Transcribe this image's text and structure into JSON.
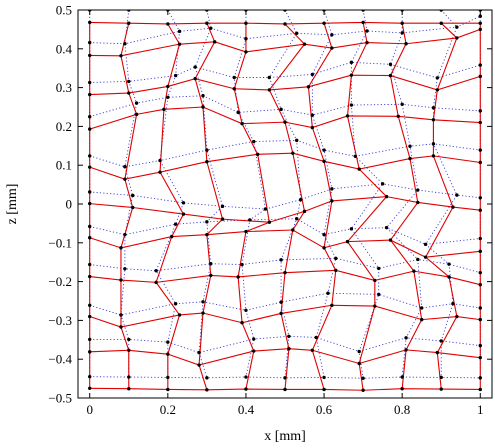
{
  "chart_data": {
    "type": "scatter",
    "title": "",
    "xlabel": "x [mm]",
    "ylabel": "z [mm]",
    "xlim": [
      -0.03,
      1.03
    ],
    "ylim": [
      -0.5,
      0.5
    ],
    "xticks": [
      0,
      0.2,
      0.4,
      0.6,
      0.8,
      1
    ],
    "xtick_labels": [
      "0",
      "0.2",
      "0.4",
      "0.6",
      "0.8",
      "1"
    ],
    "yticks": [
      -0.5,
      -0.4,
      -0.3,
      -0.2,
      -0.1,
      0,
      0.1,
      0.2,
      0.3,
      0.4,
      0.5
    ],
    "ytick_labels": [
      "−0.5",
      "−0.4",
      "−0.3",
      "−0.2",
      "−0.1",
      "0",
      "0.1",
      "0.2",
      "0.3",
      "0.4",
      "0.5"
    ],
    "grid": false,
    "legend": "none",
    "colors": {
      "deformed_mesh": "#e00000",
      "reference_mesh": "#3a3ad8",
      "nodes": "#000000"
    },
    "series": [
      {
        "style": "red-solid-mesh",
        "rows": [
          [
            [
              0.0,
              0.468
            ],
            [
              0.1,
              0.466
            ],
            [
              0.2,
              0.464
            ],
            [
              0.3,
              0.466
            ],
            [
              0.4,
              0.466
            ],
            [
              0.5,
              0.464
            ],
            [
              0.6,
              0.466
            ],
            [
              0.7,
              0.468
            ],
            [
              0.8,
              0.466
            ],
            [
              0.9,
              0.466
            ],
            [
              1.0,
              0.466
            ]
          ],
          [
            [
              0.0,
              0.383
            ],
            [
              0.08,
              0.382
            ],
            [
              0.23,
              0.412
            ],
            [
              0.32,
              0.418
            ],
            [
              0.4,
              0.392
            ],
            [
              0.55,
              0.412
            ],
            [
              0.62,
              0.402
            ],
            [
              0.71,
              0.416
            ],
            [
              0.81,
              0.413
            ],
            [
              0.94,
              0.428
            ],
            [
              1.0,
              0.45
            ]
          ],
          [
            [
              0.0,
              0.282
            ],
            [
              0.1,
              0.286
            ],
            [
              0.2,
              0.303
            ],
            [
              0.27,
              0.323
            ],
            [
              0.37,
              0.297
            ],
            [
              0.46,
              0.294
            ],
            [
              0.56,
              0.302
            ],
            [
              0.67,
              0.332
            ],
            [
              0.77,
              0.331
            ],
            [
              0.89,
              0.294
            ],
            [
              1.0,
              0.329
            ]
          ],
          [
            [
              0.0,
              0.193
            ],
            [
              0.12,
              0.231
            ],
            [
              0.19,
              0.244
            ],
            [
              0.29,
              0.25
            ],
            [
              0.39,
              0.207
            ],
            [
              0.5,
              0.211
            ],
            [
              0.57,
              0.197
            ],
            [
              0.66,
              0.227
            ],
            [
              0.79,
              0.226
            ],
            [
              0.88,
              0.217
            ],
            [
              1.0,
              0.21
            ]
          ],
          [
            [
              0.0,
              0.095
            ],
            [
              0.09,
              0.064
            ],
            [
              0.18,
              0.082
            ],
            [
              0.3,
              0.109
            ],
            [
              0.43,
              0.128
            ],
            [
              0.52,
              0.131
            ],
            [
              0.6,
              0.11
            ],
            [
              0.69,
              0.09
            ],
            [
              0.82,
              0.117
            ],
            [
              0.88,
              0.124
            ],
            [
              1.0,
              0.107
            ]
          ],
          [
            [
              0.0,
              0.001
            ],
            [
              0.11,
              -0.009
            ],
            [
              0.24,
              -0.026
            ],
            [
              0.34,
              -0.039
            ],
            [
              0.46,
              -0.047
            ],
            [
              0.55,
              -0.019
            ],
            [
              0.62,
              0.008
            ],
            [
              0.76,
              0.019
            ],
            [
              0.84,
              0.004
            ],
            [
              0.93,
              -0.008
            ],
            [
              1.0,
              -0.016
            ]
          ],
          [
            [
              0.0,
              -0.087
            ],
            [
              0.08,
              -0.113
            ],
            [
              0.21,
              -0.084
            ],
            [
              0.3,
              -0.079
            ],
            [
              0.4,
              -0.071
            ],
            [
              0.52,
              -0.067
            ],
            [
              0.6,
              -0.113
            ],
            [
              0.66,
              -0.097
            ],
            [
              0.77,
              -0.093
            ],
            [
              0.86,
              -0.137
            ],
            [
              1.0,
              -0.122
            ]
          ],
          [
            [
              0.0,
              -0.187
            ],
            [
              0.08,
              -0.196
            ],
            [
              0.17,
              -0.202
            ],
            [
              0.31,
              -0.184
            ],
            [
              0.38,
              -0.188
            ],
            [
              0.5,
              -0.177
            ],
            [
              0.63,
              -0.171
            ],
            [
              0.73,
              -0.197
            ],
            [
              0.83,
              -0.173
            ],
            [
              0.92,
              -0.188
            ],
            [
              1.0,
              -0.208
            ]
          ],
          [
            [
              0.0,
              -0.29
            ],
            [
              0.08,
              -0.317
            ],
            [
              0.23,
              -0.286
            ],
            [
              0.29,
              -0.281
            ],
            [
              0.39,
              -0.306
            ],
            [
              0.49,
              -0.282
            ],
            [
              0.62,
              -0.261
            ],
            [
              0.73,
              -0.263
            ],
            [
              0.85,
              -0.298
            ],
            [
              0.94,
              -0.29
            ],
            [
              1.0,
              -0.298
            ]
          ],
          [
            [
              0.0,
              -0.381
            ],
            [
              0.1,
              -0.377
            ],
            [
              0.2,
              -0.387
            ],
            [
              0.28,
              -0.415
            ],
            [
              0.42,
              -0.379
            ],
            [
              0.51,
              -0.373
            ],
            [
              0.57,
              -0.377
            ],
            [
              0.69,
              -0.411
            ],
            [
              0.81,
              -0.376
            ],
            [
              0.89,
              -0.383
            ],
            [
              1.0,
              -0.396
            ]
          ],
          [
            [
              0.0,
              -0.475
            ],
            [
              0.1,
              -0.476
            ],
            [
              0.2,
              -0.478
            ],
            [
              0.3,
              -0.479
            ],
            [
              0.4,
              -0.477
            ],
            [
              0.5,
              -0.478
            ],
            [
              0.6,
              -0.478
            ],
            [
              0.7,
              -0.48
            ],
            [
              0.8,
              -0.476
            ],
            [
              0.9,
              -0.477
            ],
            [
              1.0,
              -0.478
            ]
          ]
        ]
      },
      {
        "style": "blue-dotted-mesh",
        "rows": [
          [
            [
              0.0,
              0.5
            ],
            [
              0.1,
              0.5
            ],
            [
              0.2,
              0.5
            ],
            [
              0.3,
              0.5
            ],
            [
              0.4,
              0.5
            ],
            [
              0.5,
              0.5
            ],
            [
              0.6,
              0.5
            ],
            [
              0.7,
              0.5
            ],
            [
              0.8,
              0.5
            ],
            [
              0.9,
              0.5
            ],
            [
              1.0,
              0.5
            ]
          ],
          [
            [
              0.0,
              0.416
            ],
            [
              0.09,
              0.413
            ],
            [
              0.23,
              0.445
            ],
            [
              0.31,
              0.453
            ],
            [
              0.4,
              0.426
            ],
            [
              0.53,
              0.44
            ],
            [
              0.62,
              0.436
            ],
            [
              0.71,
              0.446
            ],
            [
              0.8,
              0.441
            ],
            [
              0.94,
              0.456
            ],
            [
              1.0,
              0.484
            ]
          ],
          [
            [
              0.0,
              0.313
            ],
            [
              0.1,
              0.316
            ],
            [
              0.22,
              0.331
            ],
            [
              0.27,
              0.353
            ],
            [
              0.37,
              0.326
            ],
            [
              0.46,
              0.326
            ],
            [
              0.57,
              0.334
            ],
            [
              0.67,
              0.365
            ],
            [
              0.77,
              0.36
            ],
            [
              0.89,
              0.325
            ],
            [
              1.0,
              0.358
            ]
          ],
          [
            [
              0.0,
              0.225
            ],
            [
              0.12,
              0.26
            ],
            [
              0.2,
              0.275
            ],
            [
              0.29,
              0.279
            ],
            [
              0.38,
              0.236
            ],
            [
              0.49,
              0.244
            ],
            [
              0.57,
              0.229
            ],
            [
              0.67,
              0.255
            ],
            [
              0.8,
              0.257
            ],
            [
              0.88,
              0.248
            ],
            [
              1.0,
              0.24
            ]
          ],
          [
            [
              0.0,
              0.124
            ],
            [
              0.09,
              0.096
            ],
            [
              0.18,
              0.112
            ],
            [
              0.3,
              0.139
            ],
            [
              0.42,
              0.161
            ],
            [
              0.53,
              0.164
            ],
            [
              0.6,
              0.139
            ],
            [
              0.68,
              0.123
            ],
            [
              0.82,
              0.149
            ],
            [
              0.88,
              0.155
            ],
            [
              1.0,
              0.139
            ]
          ],
          [
            [
              0.0,
              0.031
            ],
            [
              0.11,
              0.022
            ],
            [
              0.24,
              0.003
            ],
            [
              0.34,
              -0.006
            ],
            [
              0.45,
              -0.013
            ],
            [
              0.54,
              0.011
            ],
            [
              0.62,
              0.039
            ],
            [
              0.75,
              0.052
            ],
            [
              0.84,
              0.036
            ],
            [
              0.94,
              0.023
            ],
            [
              1.0,
              0.016
            ]
          ],
          [
            [
              0.0,
              -0.058
            ],
            [
              0.09,
              -0.079
            ],
            [
              0.22,
              -0.052
            ],
            [
              0.3,
              -0.046
            ],
            [
              0.41,
              -0.041
            ],
            [
              0.53,
              -0.038
            ],
            [
              0.6,
              -0.079
            ],
            [
              0.67,
              -0.064
            ],
            [
              0.76,
              -0.061
            ],
            [
              0.86,
              -0.104
            ],
            [
              1.0,
              -0.089
            ]
          ],
          [
            [
              0.0,
              -0.156
            ],
            [
              0.09,
              -0.167
            ],
            [
              0.17,
              -0.172
            ],
            [
              0.31,
              -0.154
            ],
            [
              0.39,
              -0.156
            ],
            [
              0.49,
              -0.144
            ],
            [
              0.63,
              -0.14
            ],
            [
              0.74,
              -0.166
            ],
            [
              0.84,
              -0.143
            ],
            [
              0.92,
              -0.155
            ],
            [
              1.0,
              -0.177
            ]
          ],
          [
            [
              0.0,
              -0.261
            ],
            [
              0.08,
              -0.286
            ],
            [
              0.22,
              -0.257
            ],
            [
              0.29,
              -0.252
            ],
            [
              0.4,
              -0.274
            ],
            [
              0.49,
              -0.253
            ],
            [
              0.61,
              -0.23
            ],
            [
              0.74,
              -0.233
            ],
            [
              0.85,
              -0.268
            ],
            [
              0.93,
              -0.257
            ],
            [
              1.0,
              -0.268
            ]
          ],
          [
            [
              0.0,
              -0.349
            ],
            [
              0.1,
              -0.349
            ],
            [
              0.2,
              -0.356
            ],
            [
              0.28,
              -0.383
            ],
            [
              0.42,
              -0.348
            ],
            [
              0.51,
              -0.341
            ],
            [
              0.58,
              -0.344
            ],
            [
              0.69,
              -0.38
            ],
            [
              0.81,
              -0.345
            ],
            [
              0.9,
              -0.353
            ],
            [
              1.0,
              -0.365
            ]
          ],
          [
            [
              0.0,
              -0.445
            ],
            [
              0.1,
              -0.446
            ],
            [
              0.2,
              -0.447
            ],
            [
              0.3,
              -0.448
            ],
            [
              0.4,
              -0.446
            ],
            [
              0.5,
              -0.448
            ],
            [
              0.6,
              -0.447
            ],
            [
              0.7,
              -0.449
            ],
            [
              0.8,
              -0.446
            ],
            [
              0.9,
              -0.447
            ],
            [
              1.0,
              -0.448
            ]
          ]
        ]
      }
    ]
  }
}
